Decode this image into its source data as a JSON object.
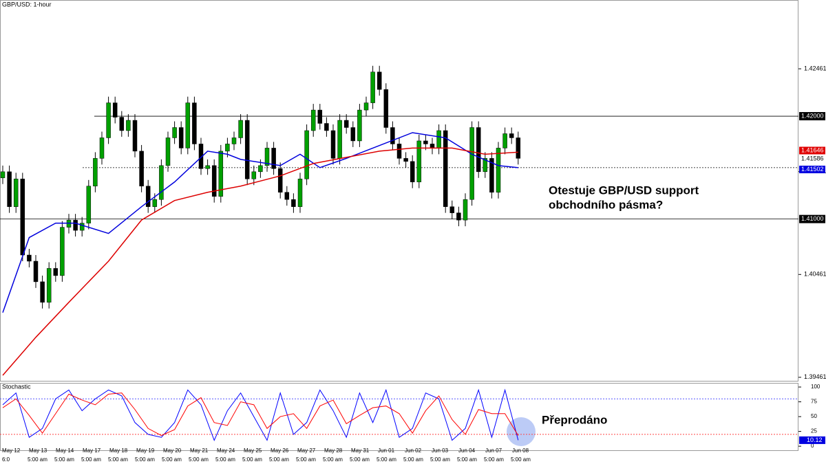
{
  "chart_data": [
    {
      "type": "candlestick",
      "title": "GBP/USD: 1-hour",
      "up_color": "#00a000",
      "down_color": "#000000",
      "open": [
        1.414,
        1.4146,
        1.4112,
        1.4139,
        1.4065,
        1.4059,
        1.4039,
        1.4019,
        1.4052,
        1.4045,
        1.4092,
        1.4099,
        1.4089,
        1.4096,
        1.4132,
        1.4159,
        1.4179,
        1.4213,
        1.4199,
        1.4186,
        1.4196,
        1.4166,
        1.4132,
        1.4112,
        1.4119,
        1.4152,
        1.4179,
        1.4189,
        1.4169,
        1.4213,
        1.4173,
        1.4149,
        1.4152,
        1.4122,
        1.4166,
        1.4173,
        1.4179,
        1.4196,
        1.4139,
        1.4146,
        1.4152,
        1.4169,
        1.4149,
        1.4126,
        1.4119,
        1.4112,
        1.4139,
        1.4186,
        1.4206,
        1.4193,
        1.4186,
        1.4159,
        1.4196,
        1.4189,
        1.4176,
        1.4206,
        1.4213,
        1.4243,
        1.4226,
        1.4189,
        1.4173,
        1.4159,
        1.4156,
        1.4136,
        1.4176,
        1.4173,
        1.4169,
        1.4186,
        1.4112,
        1.4106,
        1.4099,
        1.4119,
        1.4189,
        1.4146,
        1.4159,
        1.4126,
        1.4169,
        1.4183,
        1.4179
      ],
      "high": [
        1.4152,
        1.4152,
        1.4145,
        1.4145,
        1.4071,
        1.4065,
        1.4045,
        1.4058,
        1.4058,
        1.4098,
        1.4105,
        1.4105,
        1.4102,
        1.4138,
        1.4165,
        1.4185,
        1.4219,
        1.4219,
        1.4205,
        1.4202,
        1.4202,
        1.4172,
        1.4138,
        1.4125,
        1.4158,
        1.4185,
        1.4195,
        1.4195,
        1.4219,
        1.4219,
        1.4179,
        1.4158,
        1.4158,
        1.4172,
        1.4179,
        1.4185,
        1.4202,
        1.4202,
        1.4152,
        1.4158,
        1.4175,
        1.4175,
        1.4155,
        1.4132,
        1.4125,
        1.4145,
        1.4192,
        1.4212,
        1.4212,
        1.4199,
        1.4192,
        1.4202,
        1.4202,
        1.4195,
        1.4212,
        1.4219,
        1.4249,
        1.4249,
        1.4232,
        1.4195,
        1.4179,
        1.4165,
        1.4162,
        1.4182,
        1.4182,
        1.4179,
        1.4192,
        1.4192,
        1.4118,
        1.4112,
        1.4125,
        1.4195,
        1.4195,
        1.4165,
        1.4165,
        1.4175,
        1.4189,
        1.4189,
        1.4185
      ],
      "low": [
        1.4134,
        1.4106,
        1.4106,
        1.4059,
        1.4053,
        1.4033,
        1.4013,
        1.4013,
        1.4039,
        1.4039,
        1.4086,
        1.4083,
        1.4083,
        1.409,
        1.4126,
        1.4153,
        1.4173,
        1.4193,
        1.418,
        1.418,
        1.416,
        1.4126,
        1.4106,
        1.4106,
        1.4113,
        1.4146,
        1.4173,
        1.4163,
        1.4163,
        1.4167,
        1.4143,
        1.4143,
        1.4116,
        1.4116,
        1.416,
        1.4167,
        1.4173,
        1.4133,
        1.4133,
        1.414,
        1.4146,
        1.4143,
        1.412,
        1.4113,
        1.4106,
        1.4106,
        1.4133,
        1.418,
        1.4187,
        1.418,
        1.4153,
        1.4153,
        1.4183,
        1.417,
        1.417,
        1.42,
        1.4207,
        1.422,
        1.4183,
        1.4167,
        1.4153,
        1.415,
        1.413,
        1.413,
        1.4167,
        1.4163,
        1.4163,
        1.4106,
        1.41,
        1.4093,
        1.4093,
        1.4113,
        1.414,
        1.414,
        1.412,
        1.412,
        1.4163,
        1.4173,
        1.4153
      ],
      "close": [
        1.4146,
        1.4112,
        1.4139,
        1.4065,
        1.4059,
        1.4039,
        1.4019,
        1.4052,
        1.4045,
        1.4092,
        1.4099,
        1.4089,
        1.4096,
        1.4132,
        1.4159,
        1.4179,
        1.4213,
        1.4199,
        1.4186,
        1.4196,
        1.4166,
        1.4132,
        1.4112,
        1.4119,
        1.4152,
        1.4179,
        1.4189,
        1.4169,
        1.4213,
        1.4173,
        1.4149,
        1.4152,
        1.4122,
        1.4166,
        1.4173,
        1.4179,
        1.4196,
        1.4139,
        1.4146,
        1.4152,
        1.4169,
        1.4149,
        1.4126,
        1.4119,
        1.4112,
        1.4139,
        1.4186,
        1.4206,
        1.4193,
        1.4186,
        1.4159,
        1.4196,
        1.4189,
        1.4176,
        1.4206,
        1.4213,
        1.4243,
        1.4226,
        1.4189,
        1.4173,
        1.4159,
        1.4156,
        1.4136,
        1.4176,
        1.4173,
        1.4169,
        1.4186,
        1.4112,
        1.4106,
        1.4099,
        1.4119,
        1.4189,
        1.4146,
        1.4159,
        1.4126,
        1.4169,
        1.4183,
        1.4179,
        1.4159
      ],
      "overlays": [
        {
          "color": "#0000dd",
          "x": [
            0,
            4,
            8,
            11,
            16,
            21,
            26,
            31,
            34,
            36,
            42,
            45,
            48,
            52,
            56,
            62,
            67,
            71,
            75,
            78
          ],
          "values": [
            1.4009,
            1.4082,
            1.4096,
            1.4096,
            1.4086,
            1.4112,
            1.4136,
            1.4166,
            1.4163,
            1.4158,
            1.4152,
            1.4163,
            1.415,
            1.4159,
            1.4169,
            1.4184,
            1.4179,
            1.4163,
            1.4152,
            1.415
          ]
        },
        {
          "color": "#dd0000",
          "x": [
            0,
            5,
            10,
            16,
            21,
            26,
            31,
            36,
            42,
            47,
            52,
            57,
            62,
            68,
            73,
            78
          ],
          "values": [
            1.3948,
            1.3985,
            1.4019,
            1.4059,
            1.4099,
            1.4118,
            1.4126,
            1.4132,
            1.4142,
            1.4154,
            1.416,
            1.4166,
            1.4169,
            1.4169,
            1.4163,
            1.4165
          ]
        }
      ],
      "hlines": [
        {
          "value": 1.42,
          "label": "1.42000"
        },
        {
          "value": 1.41,
          "label": "1.41000"
        },
        1.415
      ],
      "price_tags": [
        {
          "value": 1.41646,
          "label": "1.41646",
          "color": "#e00000"
        },
        {
          "value": 1.41586,
          "label": "1.41586",
          "color": "#000000"
        },
        {
          "value": 1.41502,
          "label": "1.41502",
          "color": "#0000e0"
        }
      ],
      "ylim": [
        1.3942,
        1.4313
      ],
      "yticks": [
        1.42461,
        1.41461,
        1.40461,
        1.39461
      ],
      "annotation": [
        "Otestuje GBP/USD support",
        "obchodního pásma?"
      ],
      "dates": [
        "May 12",
        "May 13",
        "May 14",
        "May 17",
        "May 18",
        "May 19",
        "May 20",
        "May 21",
        "May 24",
        "May 25",
        "May 26",
        "May 27",
        "May 28",
        "May 31",
        "Jun 01",
        "Jun 02",
        "Jun 03",
        "Jun 04",
        "Jun 07",
        "Jun 08"
      ],
      "times": [
        "6:0",
        "5:00 am",
        "5:00 am",
        "5:00 am",
        "5:00 am",
        "5:00 am",
        "5:00 am",
        "5:00 am",
        "5:00 am",
        "5:00 am",
        "5:00 am",
        "5:00 am",
        "5:00 am",
        "5:00 am",
        "5:00 am",
        "5:00 am",
        "5:00 am",
        "5:00 am",
        "5:00 am",
        "5:00 am"
      ]
    },
    {
      "type": "line",
      "title": "Stochastic",
      "x": [
        0,
        2,
        4,
        6,
        8,
        10,
        12,
        14,
        16,
        18,
        20,
        22,
        24,
        26,
        28,
        30,
        32,
        34,
        36,
        38,
        40,
        42,
        44,
        46,
        48,
        50,
        52,
        54,
        56,
        58,
        60,
        62,
        64,
        66,
        68,
        70,
        72,
        74,
        76,
        78
      ],
      "series": [
        {
          "color": "#0000ff",
          "values": [
            70,
            90,
            15,
            30,
            80,
            95,
            60,
            80,
            95,
            85,
            40,
            20,
            15,
            40,
            95,
            70,
            10,
            60,
            90,
            50,
            10,
            90,
            20,
            40,
            95,
            60,
            15,
            90,
            40,
            95,
            15,
            30,
            90,
            80,
            10,
            30,
            95,
            15,
            95,
            10.12
          ]
        },
        {
          "color": "#ff0000",
          "values": [
            65,
            80,
            52,
            22,
            55,
            88,
            78,
            70,
            88,
            90,
            62,
            30,
            18,
            28,
            68,
            82,
            40,
            35,
            75,
            70,
            30,
            50,
            55,
            30,
            68,
            78,
            38,
            52,
            65,
            68,
            55,
            22,
            60,
            85,
            45,
            20,
            62,
            55,
            55,
            18
          ]
        }
      ],
      "levels": [
        80,
        20
      ],
      "level_color": "#5555ff",
      "last_label": {
        "value": 10.12,
        "color": "#0000e0"
      },
      "ylim": [
        -8,
        107
      ],
      "yticks": [
        100,
        75,
        50,
        25,
        0
      ],
      "annotation": "Přeprodáno"
    }
  ]
}
